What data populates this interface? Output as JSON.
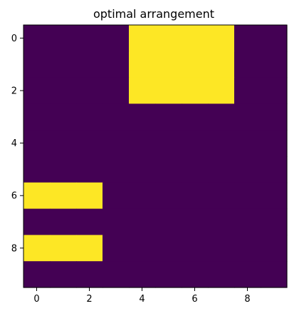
{
  "chart_data": {
    "type": "heatmap",
    "title": "optimal arrangement",
    "xlabel": "",
    "ylabel": "",
    "rows": 10,
    "cols": 10,
    "x_ticks": [
      0,
      2,
      4,
      6,
      8
    ],
    "y_ticks": [
      0,
      2,
      4,
      6,
      8
    ],
    "xlim": [
      -0.5,
      9.5
    ],
    "ylim": [
      9.5,
      -0.5
    ],
    "colormap": "viridis",
    "colors": {
      "low": "#440154",
      "high": "#fde725"
    },
    "grid": false,
    "values": [
      [
        0,
        0,
        0,
        0,
        1,
        1,
        1,
        1,
        0,
        0
      ],
      [
        0,
        0,
        0,
        0,
        1,
        1,
        1,
        1,
        0,
        0
      ],
      [
        0,
        0,
        0,
        0,
        1,
        1,
        1,
        1,
        0,
        0
      ],
      [
        0,
        0,
        0,
        0,
        0,
        0,
        0,
        0,
        0,
        0
      ],
      [
        0,
        0,
        0,
        0,
        0,
        0,
        0,
        0,
        0,
        0
      ],
      [
        0,
        0,
        0,
        0,
        0,
        0,
        0,
        0,
        0,
        0
      ],
      [
        1,
        1,
        1,
        0,
        0,
        0,
        0,
        0,
        0,
        0
      ],
      [
        0,
        0,
        0,
        0,
        0,
        0,
        0,
        0,
        0,
        0
      ],
      [
        1,
        1,
        1,
        0,
        0,
        0,
        0,
        0,
        0,
        0
      ],
      [
        0,
        0,
        0,
        0,
        0,
        0,
        0,
        0,
        0,
        0
      ]
    ]
  }
}
